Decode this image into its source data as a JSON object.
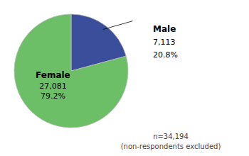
{
  "chart_data": {
    "type": "pie",
    "categories": [
      "Male",
      "Female"
    ],
    "values": [
      20.8,
      79.2
    ],
    "value_labels": [
      "20.8%",
      "79.2%"
    ],
    "counts": [
      7113,
      27081
    ],
    "count_labels": [
      "7,113",
      "27,081"
    ],
    "colors": [
      "#3a4e9c",
      "#6dbf67"
    ],
    "annotations": [
      "n=34,194",
      "(non-respondents excluded)"
    ]
  }
}
